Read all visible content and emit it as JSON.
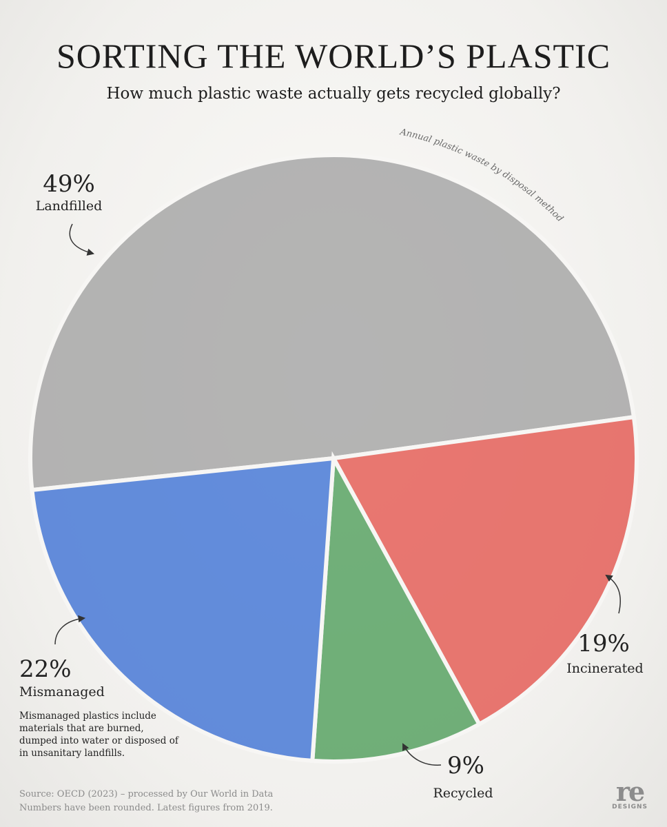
{
  "chart_data": {
    "type": "pie",
    "title": "SORTING THE WORLD’S PLASTIC",
    "subtitle": "How much plastic waste actually gets recycled globally?",
    "annotation": "Annual plastic waste by disposal method",
    "categories": [
      "Landfilled",
      "Incinerated",
      "Recycled",
      "Mismanaged"
    ],
    "values": [
      49,
      19,
      9,
      22
    ],
    "value_labels": [
      "49%",
      "19%",
      "9%",
      "22%"
    ],
    "colors": [
      "#a3a3a3",
      "#e4564f",
      "#4f9e5a",
      "#3d72d4"
    ],
    "note": "Mismanaged plastics include materials that are burned, dumped into water or disposed of in unsanitary landfills.",
    "source": "Source: OECD (2023) – processed by Our World in Data",
    "footnote": "Numbers have been rounded. Latest figures from 2019."
  },
  "logo": {
    "name": "re",
    "tagline": "DESIGNS"
  }
}
